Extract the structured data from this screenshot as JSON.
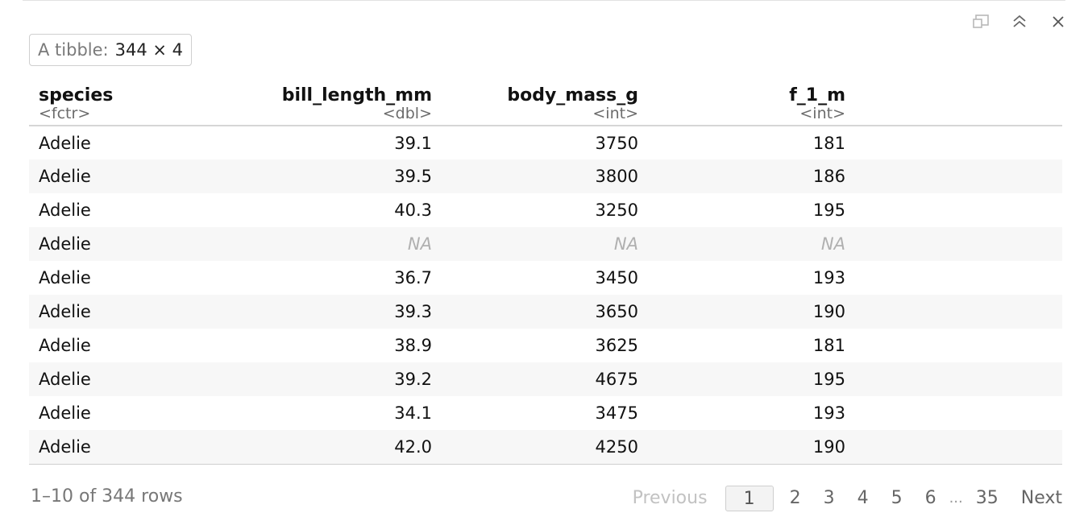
{
  "badge": {
    "label": "A tibble:",
    "dims": "344 × 4"
  },
  "icons": [
    "popout-icon",
    "collapse-icon",
    "close-icon"
  ],
  "columns": [
    {
      "name": "species",
      "type": "<fctr>",
      "align": "left"
    },
    {
      "name": "bill_length_mm",
      "type": "<dbl>",
      "align": "right"
    },
    {
      "name": "body_mass_g",
      "type": "<int>",
      "align": "right"
    },
    {
      "name": "f_1_m",
      "type": "<int>",
      "align": "right"
    }
  ],
  "rows": [
    [
      "Adelie",
      "39.1",
      "3750",
      "181"
    ],
    [
      "Adelie",
      "39.5",
      "3800",
      "186"
    ],
    [
      "Adelie",
      "40.3",
      "3250",
      "195"
    ],
    [
      "Adelie",
      "NA",
      "NA",
      "NA"
    ],
    [
      "Adelie",
      "36.7",
      "3450",
      "193"
    ],
    [
      "Adelie",
      "39.3",
      "3650",
      "190"
    ],
    [
      "Adelie",
      "38.9",
      "3625",
      "181"
    ],
    [
      "Adelie",
      "39.2",
      "4675",
      "195"
    ],
    [
      "Adelie",
      "34.1",
      "3475",
      "193"
    ],
    [
      "Adelie",
      "42.0",
      "4250",
      "190"
    ]
  ],
  "footer": {
    "row_count": "1–10 of 344 rows",
    "previous": "Previous",
    "pages": [
      "1",
      "2",
      "3",
      "4",
      "5",
      "6"
    ],
    "current_page": "1",
    "ellipsis": "...",
    "last_page": "35",
    "next": "Next"
  }
}
